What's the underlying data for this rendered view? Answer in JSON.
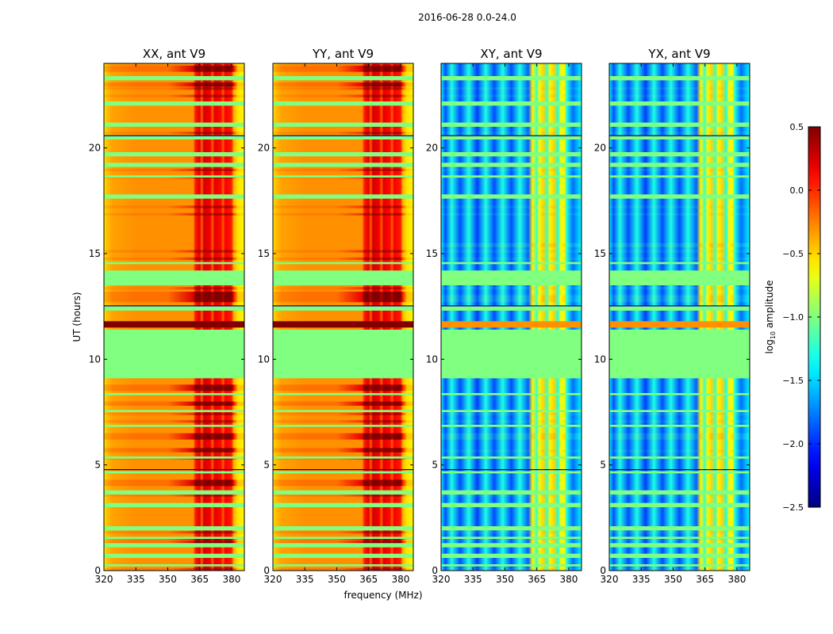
{
  "chart_data": {
    "type": "heatmap",
    "title": "2016-06-28 0.0-24.0",
    "xlabel": "frequency (MHz)",
    "ylabel": "UT (hours)",
    "xlim": [
      320,
      386
    ],
    "ylim": [
      0,
      24
    ],
    "xticks": [
      320,
      335,
      350,
      365,
      380
    ],
    "yticks": [
      0,
      5,
      10,
      15,
      20
    ],
    "colorbar": {
      "label_main": "log",
      "label_sub": "10",
      "label_rest": " amplitude",
      "range": [
        -2.5,
        0.5
      ],
      "ticks": [
        "0.5",
        "0.0",
        "−0.5",
        "−1.0",
        "−1.5",
        "−2.0",
        "−2.5"
      ],
      "tick_values": [
        0.5,
        0.0,
        -0.5,
        -1.0,
        -1.5,
        -2.0,
        -2.5
      ],
      "colormap": "jet"
    },
    "flag_value": -1.0,
    "flagged_bands_hours": [
      [
        9.1,
        11.4
      ],
      [
        13.5,
        14.2
      ],
      [
        23.2,
        23.4
      ],
      [
        22.0,
        22.2
      ],
      [
        21.0,
        21.2
      ],
      [
        20.4,
        20.6
      ],
      [
        19.6,
        19.8
      ],
      [
        19.1,
        19.3
      ],
      [
        18.6,
        18.7
      ],
      [
        17.6,
        17.8
      ],
      [
        14.5,
        14.6
      ],
      [
        12.3,
        12.5
      ],
      [
        8.3,
        8.4
      ],
      [
        7.5,
        7.6
      ],
      [
        6.8,
        6.9
      ],
      [
        5.3,
        5.4
      ],
      [
        4.6,
        4.7
      ],
      [
        3.6,
        3.8
      ],
      [
        3.0,
        3.2
      ],
      [
        1.9,
        2.1
      ],
      [
        1.5,
        1.6
      ],
      [
        1.1,
        1.3
      ],
      [
        0.6,
        0.8
      ],
      [
        0.2,
        0.3
      ]
    ],
    "panels": [
      {
        "title": "XX, ant V9",
        "profile": [
          [
            320,
            -0.6
          ],
          [
            321,
            -0.45
          ],
          [
            324,
            -0.35
          ],
          [
            335,
            -0.3
          ],
          [
            350,
            -0.3
          ],
          [
            362,
            -0.3
          ],
          [
            363,
            0.05
          ],
          [
            365,
            0.2
          ],
          [
            366,
            -0.15
          ],
          [
            367,
            0.25
          ],
          [
            370,
            0.15
          ],
          [
            371,
            -0.15
          ],
          [
            372,
            0.2
          ],
          [
            375,
            0.1
          ],
          [
            376,
            -0.15
          ],
          [
            377,
            0.15
          ],
          [
            380,
            0.05
          ],
          [
            381,
            -0.4
          ],
          [
            383,
            -0.55
          ],
          [
            386,
            -0.6
          ]
        ],
        "hot_bands_hours": [
          [
            23.6,
            23.9
          ],
          [
            22.9,
            23.1
          ],
          [
            12.7,
            13.2
          ],
          [
            8.5,
            8.8
          ],
          [
            7.8,
            8.0
          ],
          [
            6.2,
            6.5
          ],
          [
            5.6,
            5.8
          ],
          [
            4.0,
            4.3
          ],
          [
            1.3,
            1.4
          ]
        ],
        "hot_value": 0.35,
        "strong_band_hours": [
          11.5,
          11.8
        ],
        "strong_value": 0.5
      },
      {
        "title": "YY, ant V9",
        "profile": [
          [
            320,
            -0.6
          ],
          [
            321,
            -0.45
          ],
          [
            324,
            -0.35
          ],
          [
            335,
            -0.3
          ],
          [
            350,
            -0.3
          ],
          [
            362,
            -0.3
          ],
          [
            363,
            0.05
          ],
          [
            365,
            0.2
          ],
          [
            366,
            -0.15
          ],
          [
            367,
            0.25
          ],
          [
            370,
            0.15
          ],
          [
            371,
            -0.15
          ],
          [
            372,
            0.2
          ],
          [
            375,
            0.1
          ],
          [
            376,
            -0.15
          ],
          [
            377,
            0.15
          ],
          [
            380,
            0.05
          ],
          [
            381,
            -0.4
          ],
          [
            383,
            -0.55
          ],
          [
            386,
            -0.6
          ]
        ],
        "hot_bands_hours": [
          [
            23.6,
            23.9
          ],
          [
            22.9,
            23.1
          ],
          [
            12.7,
            13.2
          ],
          [
            8.5,
            8.8
          ],
          [
            7.8,
            8.0
          ],
          [
            6.2,
            6.5
          ],
          [
            5.6,
            5.8
          ],
          [
            4.0,
            4.3
          ],
          [
            1.3,
            1.4
          ]
        ],
        "hot_value": 0.3,
        "strong_band_hours": [
          11.5,
          11.8
        ],
        "strong_value": 0.5
      },
      {
        "title": "XY, ant V9",
        "profile": [
          [
            320,
            -1.4
          ],
          [
            322,
            -1.9
          ],
          [
            325,
            -1.3
          ],
          [
            329,
            -1.9
          ],
          [
            333,
            -1.3
          ],
          [
            337,
            -1.95
          ],
          [
            341,
            -1.3
          ],
          [
            345,
            -1.9
          ],
          [
            349,
            -1.3
          ],
          [
            353,
            -1.9
          ],
          [
            357,
            -1.3
          ],
          [
            361,
            -1.85
          ],
          [
            363,
            -0.6
          ],
          [
            365,
            -1.2
          ],
          [
            366,
            -0.7
          ],
          [
            368,
            -0.5
          ],
          [
            370,
            -1.2
          ],
          [
            371,
            -0.6
          ],
          [
            373,
            -0.5
          ],
          [
            375,
            -1.3
          ],
          [
            376,
            -0.7
          ],
          [
            378,
            -0.6
          ],
          [
            379,
            -1.3
          ],
          [
            382,
            -1.8
          ],
          [
            386,
            -1.4
          ]
        ],
        "hot_bands_hours": [
          [
            12.7,
            13.0
          ],
          [
            6.2,
            6.5
          ],
          [
            15.3,
            15.5
          ]
        ],
        "hot_value": -0.2,
        "strong_band_hours": [
          11.5,
          11.8
        ],
        "strong_value": -0.3
      },
      {
        "title": "YX, ant V9",
        "profile": [
          [
            320,
            -1.4
          ],
          [
            322,
            -1.9
          ],
          [
            325,
            -1.3
          ],
          [
            329,
            -1.9
          ],
          [
            333,
            -1.3
          ],
          [
            337,
            -1.95
          ],
          [
            341,
            -1.3
          ],
          [
            345,
            -1.9
          ],
          [
            349,
            -1.3
          ],
          [
            353,
            -1.9
          ],
          [
            357,
            -1.3
          ],
          [
            361,
            -1.85
          ],
          [
            363,
            -0.6
          ],
          [
            365,
            -1.2
          ],
          [
            366,
            -0.7
          ],
          [
            368,
            -0.5
          ],
          [
            370,
            -1.2
          ],
          [
            371,
            -0.6
          ],
          [
            373,
            -0.5
          ],
          [
            375,
            -1.3
          ],
          [
            376,
            -0.7
          ],
          [
            378,
            -0.6
          ],
          [
            379,
            -1.3
          ],
          [
            382,
            -1.8
          ],
          [
            386,
            -1.4
          ]
        ],
        "hot_bands_hours": [
          [
            12.7,
            13.0
          ],
          [
            6.2,
            6.5
          ],
          [
            15.3,
            15.5
          ]
        ],
        "hot_value": -0.2,
        "strong_band_hours": [
          11.5,
          11.8
        ],
        "strong_value": -0.3
      }
    ]
  }
}
